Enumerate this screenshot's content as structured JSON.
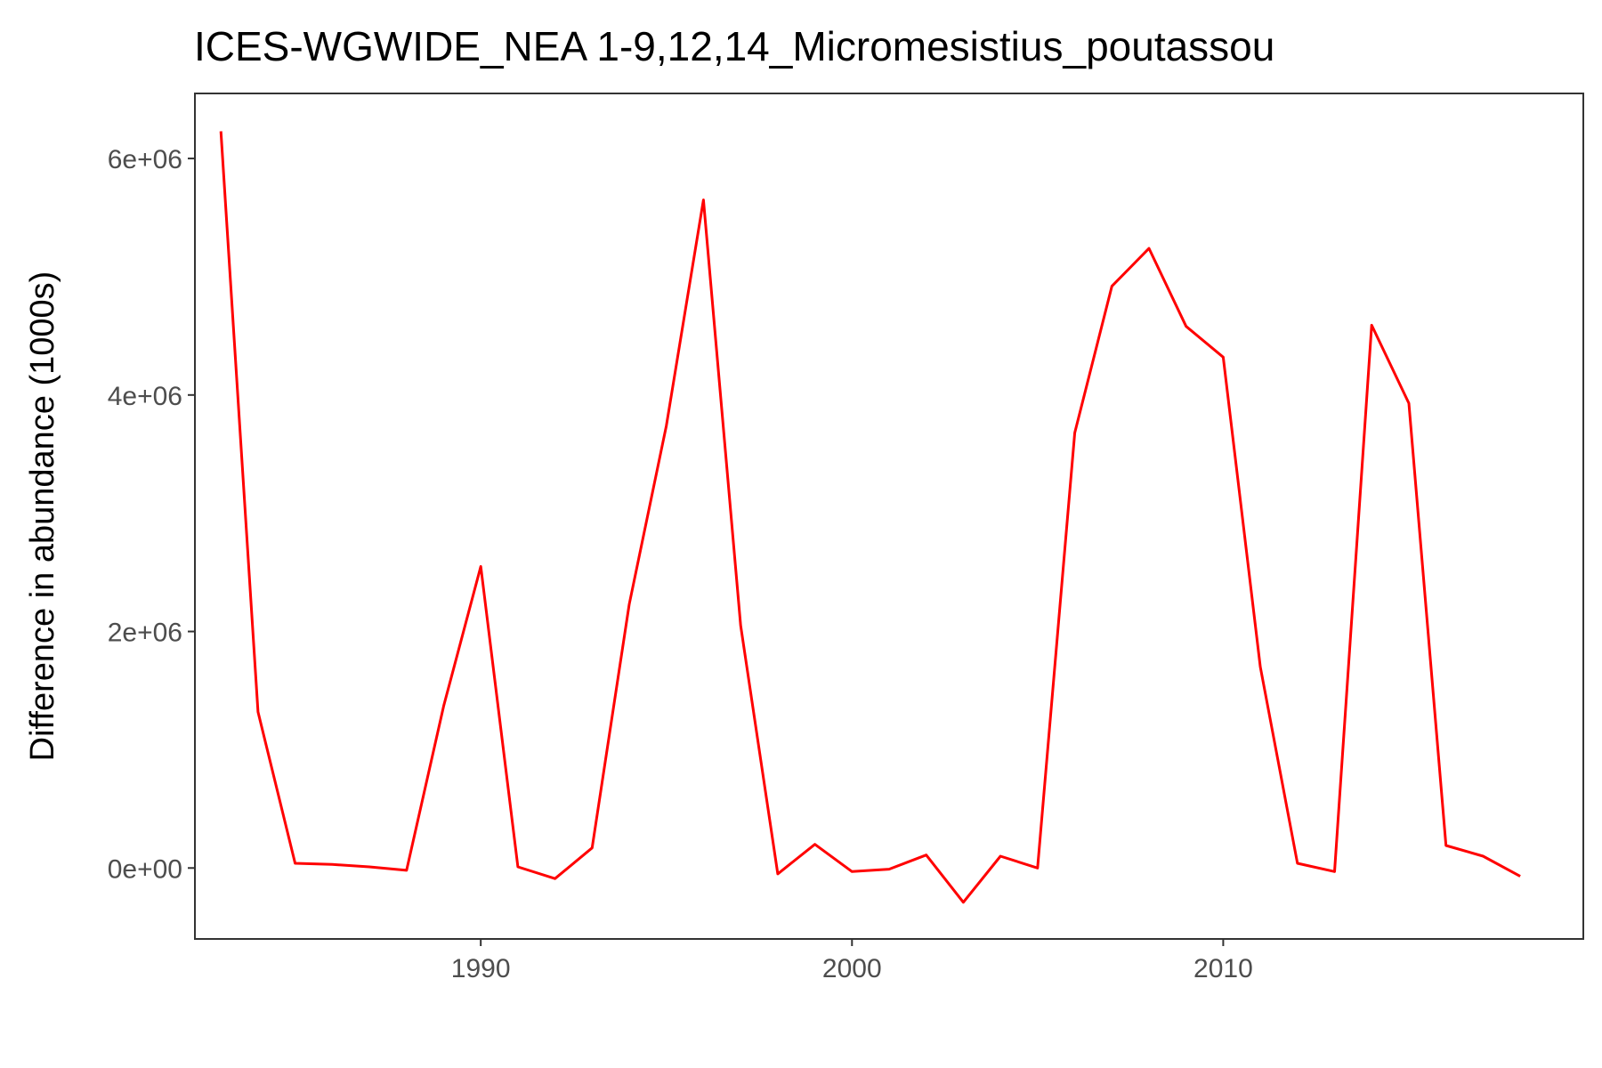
{
  "chart_data": {
    "type": "line",
    "title": "ICES-WGWIDE_NEA 1-9,12,14_Micromesistius_poutassou",
    "xlabel": "",
    "ylabel": "Difference in abundance (1000s)",
    "xlim": [
      1982.3,
      2019.7
    ],
    "ylim": [
      -600000,
      6550000
    ],
    "x_ticks": [
      1990,
      2000,
      2010
    ],
    "x_tick_labels": [
      "1990",
      "2000",
      "2010"
    ],
    "y_ticks": [
      0,
      2000000,
      4000000,
      6000000
    ],
    "y_tick_labels": [
      "0e+00",
      "2e+06",
      "4e+06",
      "6e+06"
    ],
    "grid": false,
    "legend": "none",
    "colors": {
      "line": "#ff0000",
      "panel_border": "#333333",
      "tick_text": "#4d4d4d"
    },
    "series": [
      {
        "x": [
          1983,
          1984,
          1985,
          1986,
          1987,
          1988,
          1989,
          1990,
          1991,
          1992,
          1993,
          1994,
          1995,
          1996,
          1997,
          1998,
          1999,
          2000,
          2001,
          2002,
          2003,
          2004,
          2005,
          2006,
          2007,
          2008,
          2009,
          2010,
          2011,
          2012,
          2013,
          2014,
          2015,
          2016,
          2017,
          2018
        ],
        "y": [
          6230000,
          1320000,
          40000,
          30000,
          10000,
          -20000,
          1370000,
          2550000,
          10000,
          -90000,
          170000,
          2230000,
          3740000,
          5650000,
          2050000,
          -50000,
          200000,
          -30000,
          -10000,
          110000,
          -290000,
          100000,
          0,
          3680000,
          4920000,
          5240000,
          4580000,
          4320000,
          1700000,
          40000,
          -30000,
          4590000,
          3930000,
          190000,
          100000,
          -70000
        ]
      }
    ]
  }
}
